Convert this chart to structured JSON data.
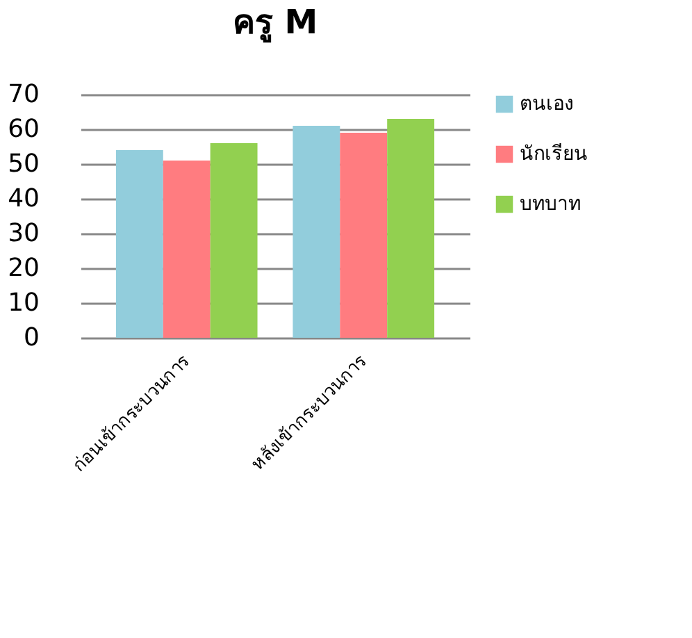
{
  "chart_data": {
    "type": "bar",
    "title": "ครู M",
    "categories": [
      "ก่อนเข้ากระบวนการ",
      "หลังเข้ากระบวนการ"
    ],
    "series": [
      {
        "name": "ตนเอง",
        "color": "#92cddc",
        "values": [
          54,
          61
        ]
      },
      {
        "name": "นักเรียน",
        "color": "#ff7c80",
        "values": [
          51,
          59
        ]
      },
      {
        "name": "บทบาท",
        "color": "#92d050",
        "values": [
          56,
          63
        ]
      }
    ],
    "ylim": [
      0,
      70
    ],
    "yticks": [
      0,
      10,
      20,
      30,
      40,
      50,
      60,
      70
    ],
    "grid": "y",
    "legend": "right"
  }
}
